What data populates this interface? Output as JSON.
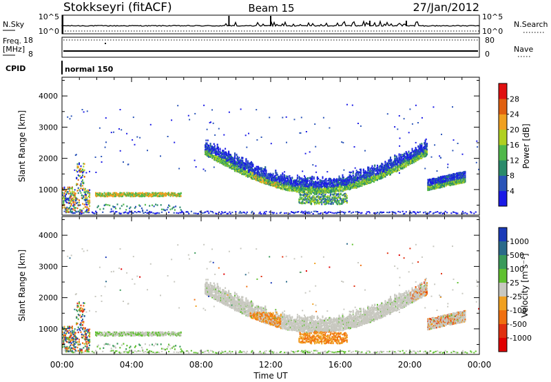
{
  "header": {
    "station": "Stokkseyri (fitACF)",
    "beam": "Beam 15",
    "date": "27/Jan/2012"
  },
  "top_panels": {
    "nsky_label": "N.Sky",
    "nsearch_label": "N.Search",
    "nsky_ticks_left": [
      "10^5",
      "10^0"
    ],
    "nsky_ticks_right": [
      "10^5",
      "10^0"
    ],
    "freq_label_line1": "Freq.",
    "freq_label_line2": "[MHz]",
    "freq_ticks": [
      "18",
      "8"
    ],
    "nave_label": "Nave",
    "nave_ticks": [
      "80",
      "0"
    ],
    "cpid_label": "CPID",
    "cpid_text": "normal 150"
  },
  "chart_data": [
    {
      "type": "heatmap",
      "panel": "power",
      "ylabel": "Slant Range [km]",
      "yticks": [
        "1000",
        "2000",
        "3000",
        "4000"
      ],
      "ylim": [
        180,
        4600
      ],
      "xlim": [
        0,
        24
      ],
      "colorbar_label": "Power [dB]",
      "colorbar_ticks": [
        "4",
        "8",
        "12",
        "16",
        "20",
        "24",
        "28"
      ],
      "colors": [
        "#1a1ae6",
        "#2a54b8",
        "#2a8a6a",
        "#50b84a",
        "#b0d020",
        "#f0a020",
        "#e06010",
        "#e01010"
      ]
    },
    {
      "type": "heatmap",
      "panel": "velocity",
      "ylabel": "Slant Range [km]",
      "yticks": [
        "1000",
        "2000",
        "3000",
        "4000"
      ],
      "ylim": [
        180,
        4600
      ],
      "xlim": [
        0,
        24
      ],
      "colorbar_label": "Velocity [m s⁻¹]",
      "colorbar_ticks": [
        "1000",
        "500",
        "100",
        "25",
        "-25",
        "-100",
        "-500",
        "-1000"
      ],
      "colors": [
        "#1a3ab8",
        "#2a6a8a",
        "#3a9a5a",
        "#60c030",
        "#c8c8c0",
        "#f0a020",
        "#f07010",
        "#e03010",
        "#e00000"
      ],
      "xticks": [
        "00:00",
        "04:00",
        "08:00",
        "12:00",
        "16:00",
        "20:00",
        "00:00"
      ],
      "xlabel": "Time UT"
    }
  ]
}
